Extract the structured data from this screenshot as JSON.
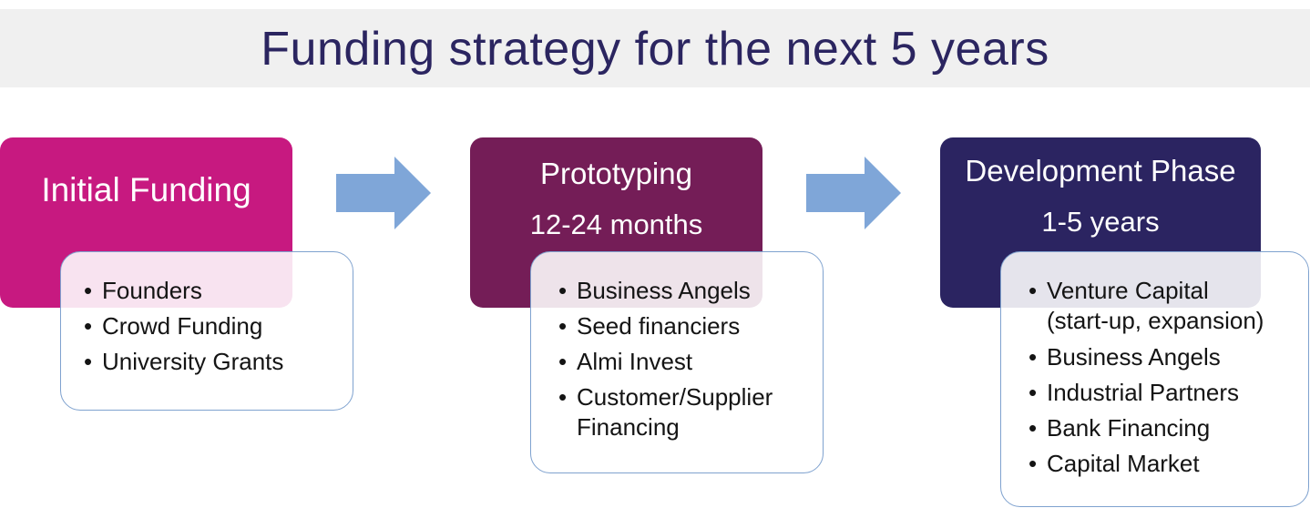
{
  "title": "Funding strategy for the next 5 years",
  "colors": {
    "title_text": "#2b2560",
    "title_bar": "#f0f0f0",
    "arrow": "#7fa6d8",
    "source_border": "#7fa2cf"
  },
  "phases": [
    {
      "title": "Initial Funding",
      "duration": "",
      "color": "#c71980",
      "sources": [
        "Founders",
        "Crowd Funding",
        "University Grants"
      ]
    },
    {
      "title": "Prototyping",
      "duration": "12-24 months",
      "color": "#741d57",
      "sources": [
        "Business Angels",
        "Seed financiers",
        "Almi Invest",
        "Customer/Supplier\nFinancing"
      ]
    },
    {
      "title": "Development Phase",
      "duration": "1-5 years",
      "color": "#2b2461",
      "sources": [
        "Venture Capital\n(start-up, expansion)",
        "Business Angels",
        "Industrial Partners",
        "Bank Financing",
        "Capital Market"
      ]
    }
  ],
  "bullet": "•",
  "connectors": [
    {
      "icon": "right-arrow-icon"
    },
    {
      "icon": "right-arrow-icon"
    }
  ]
}
